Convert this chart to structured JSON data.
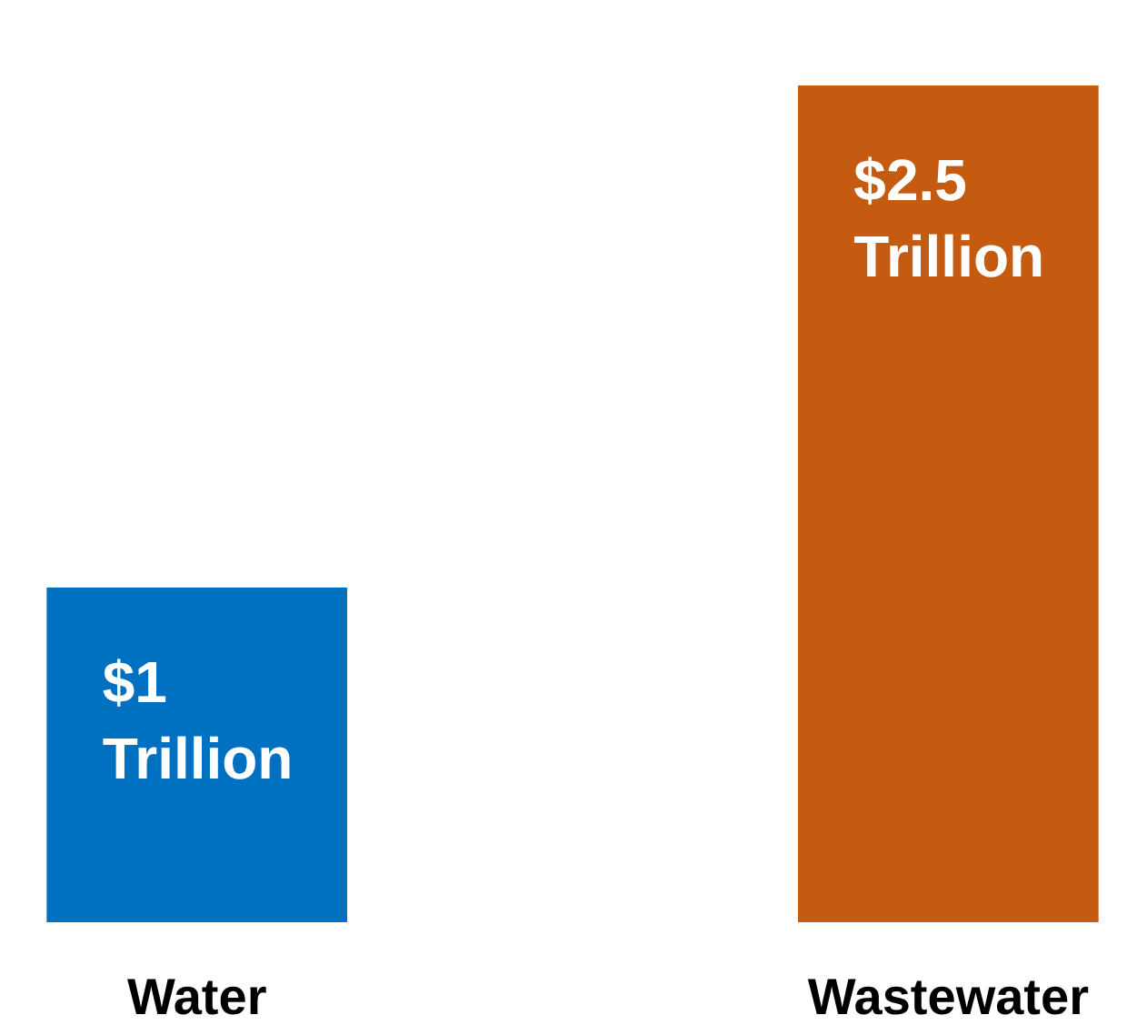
{
  "chart_data": {
    "type": "bar",
    "categories": [
      "Water",
      "Wastewater"
    ],
    "values": [
      1,
      2.5
    ],
    "colors": [
      "#0070c0",
      "#c55a11"
    ],
    "value_labels": [
      "$1 Trillion",
      "$2.5 Trillion"
    ]
  }
}
